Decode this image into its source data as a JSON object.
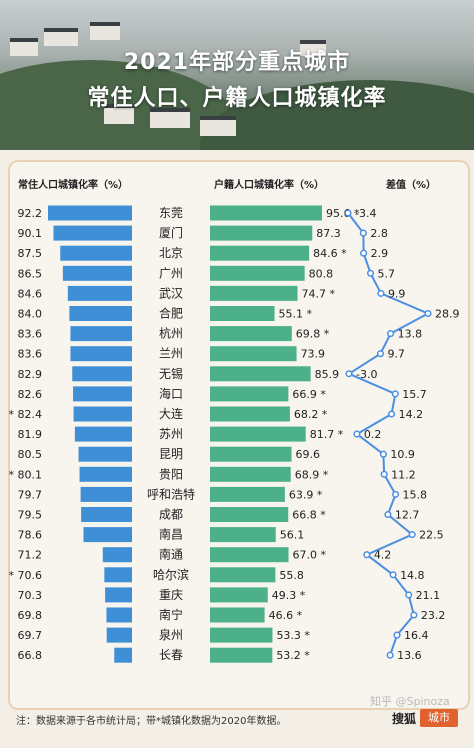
{
  "title_line1": "2021年部分重点城市",
  "title_line2": "常住人口、户籍人口城镇化率",
  "headers": {
    "resident": "常住人口城镇化率（%）",
    "hukou": "户籍人口城镇化率（%）",
    "diff": "差值（%）"
  },
  "footnote": "注：数据来源于各市统计局；带*城镇化数据为2020年数据。",
  "watermark": "知乎 @Spinoza",
  "brand_text": "搜狐",
  "brand_box": "城市",
  "colors": {
    "resident_bar": "#3f8fd6",
    "hukou_bar": "#4cb08a",
    "diff_line": "#4a8fe0"
  },
  "chart_data": {
    "type": "bar",
    "rows": [
      {
        "city": "东莞",
        "resident": "92.2",
        "resident_star": false,
        "hukou": "95.6",
        "hukou_star": true,
        "diff": "-3.4"
      },
      {
        "city": "厦门",
        "resident": "90.1",
        "resident_star": false,
        "hukou": "87.3",
        "hukou_star": false,
        "diff": "2.8"
      },
      {
        "city": "北京",
        "resident": "87.5",
        "resident_star": false,
        "hukou": "84.6",
        "hukou_star": true,
        "diff": "2.9"
      },
      {
        "city": "广州",
        "resident": "86.5",
        "resident_star": false,
        "hukou": "80.8",
        "hukou_star": false,
        "diff": "5.7"
      },
      {
        "city": "武汉",
        "resident": "84.6",
        "resident_star": false,
        "hukou": "74.7",
        "hukou_star": true,
        "diff": "9.9"
      },
      {
        "city": "合肥",
        "resident": "84.0",
        "resident_star": false,
        "hukou": "55.1",
        "hukou_star": true,
        "diff": "28.9"
      },
      {
        "city": "杭州",
        "resident": "83.6",
        "resident_star": false,
        "hukou": "69.8",
        "hukou_star": true,
        "diff": "13.8"
      },
      {
        "city": "兰州",
        "resident": "83.6",
        "resident_star": false,
        "hukou": "73.9",
        "hukou_star": false,
        "diff": "9.7"
      },
      {
        "city": "无锡",
        "resident": "82.9",
        "resident_star": false,
        "hukou": "85.9",
        "hukou_star": false,
        "diff": "-3.0"
      },
      {
        "city": "海口",
        "resident": "82.6",
        "resident_star": false,
        "hukou": "66.9",
        "hukou_star": true,
        "diff": "15.7"
      },
      {
        "city": "大连",
        "resident": "82.4",
        "resident_star": true,
        "hukou": "68.2",
        "hukou_star": true,
        "diff": "14.2"
      },
      {
        "city": "苏州",
        "resident": "81.9",
        "resident_star": false,
        "hukou": "81.7",
        "hukou_star": true,
        "diff": "0.2"
      },
      {
        "city": "昆明",
        "resident": "80.5",
        "resident_star": false,
        "hukou": "69.6",
        "hukou_star": false,
        "diff": "10.9"
      },
      {
        "city": "贵阳",
        "resident": "80.1",
        "resident_star": true,
        "hukou": "68.9",
        "hukou_star": true,
        "diff": "11.2"
      },
      {
        "city": "呼和浩特",
        "resident": "79.7",
        "resident_star": false,
        "hukou": "63.9",
        "hukou_star": true,
        "diff": "15.8"
      },
      {
        "city": "成都",
        "resident": "79.5",
        "resident_star": false,
        "hukou": "66.8",
        "hukou_star": true,
        "diff": "12.7"
      },
      {
        "city": "南昌",
        "resident": "78.6",
        "resident_star": false,
        "hukou": "56.1",
        "hukou_star": false,
        "diff": "22.5"
      },
      {
        "city": "南通",
        "resident": "71.2",
        "resident_star": false,
        "hukou": "67.0",
        "hukou_star": true,
        "diff": "4.2"
      },
      {
        "city": "哈尔滨",
        "resident": "70.6",
        "resident_star": true,
        "hukou": "55.8",
        "hukou_star": false,
        "diff": "14.8"
      },
      {
        "city": "重庆",
        "resident": "70.3",
        "resident_star": false,
        "hukou": "49.3",
        "hukou_star": true,
        "diff": "21.1"
      },
      {
        "city": "南宁",
        "resident": "69.8",
        "resident_star": false,
        "hukou": "46.6",
        "hukou_star": true,
        "diff": "23.2"
      },
      {
        "city": "泉州",
        "resident": "69.7",
        "resident_star": false,
        "hukou": "53.3",
        "hukou_star": true,
        "diff": "16.4"
      },
      {
        "city": "长春",
        "resident": "66.8",
        "resident_star": false,
        "hukou": "53.2",
        "hukou_star": true,
        "diff": "13.6"
      }
    ]
  }
}
